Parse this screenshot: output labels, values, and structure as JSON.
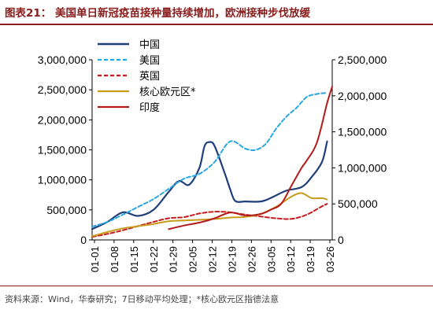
{
  "title": "图表21：  美国单日新冠疫苗接种量持续增加，欧洲接种步伐放缓",
  "source": "资料来源：Wind，华泰研究；7日移动平均处理；*核心欧元区指德法意",
  "colors": {
    "china": "#1f3f7a",
    "usa": "#2aa6e0",
    "uk": "#c41e1e",
    "eurozone": "#c89a1a",
    "india": "#b31b1b",
    "title": "#8a1c1c"
  },
  "chart_data": {
    "type": "line",
    "x": [
      "01-01",
      "01-08",
      "01-15",
      "01-22",
      "01-29",
      "02-05",
      "02-12",
      "02-19",
      "02-26",
      "03-05",
      "03-12",
      "03-19",
      "03-26"
    ],
    "left_axis": {
      "ylim": [
        0,
        3000000
      ],
      "ticks": [
        "0",
        "500,000",
        "1,000,000",
        "1,500,000",
        "2,000,000",
        "2,500,000",
        "3,000,000"
      ]
    },
    "right_axis": {
      "ylim": [
        0,
        2500000
      ],
      "ticks": [
        "0",
        "500,000",
        "1,000,000",
        "1,500,000",
        "2,000,000",
        "2,500,000"
      ]
    },
    "legend": "top-center",
    "series": [
      {
        "name": "中国",
        "axis": "left",
        "style": "solid",
        "points": [
          [
            0,
            180000
          ],
          [
            3,
            300000
          ],
          [
            6,
            460000
          ],
          [
            9,
            400000
          ],
          [
            12,
            500000
          ],
          [
            15,
            800000
          ],
          [
            17,
            980000
          ],
          [
            19,
            920000
          ],
          [
            21,
            1200000
          ],
          [
            22,
            1560000
          ],
          [
            23,
            1630000
          ],
          [
            24,
            1560000
          ],
          [
            26,
            1100000
          ],
          [
            27,
            850000
          ],
          [
            28,
            650000
          ],
          [
            30,
            640000
          ],
          [
            33,
            640000
          ],
          [
            35,
            700000
          ],
          [
            38,
            820000
          ],
          [
            41,
            880000
          ],
          [
            43,
            1050000
          ],
          [
            45,
            1300000
          ],
          [
            46,
            1640000
          ]
        ]
      },
      {
        "name": "美国",
        "axis": "left",
        "style": "dashed",
        "points": [
          [
            0,
            220000
          ],
          [
            3,
            300000
          ],
          [
            6,
            420000
          ],
          [
            9,
            550000
          ],
          [
            12,
            680000
          ],
          [
            15,
            850000
          ],
          [
            18,
            1020000
          ],
          [
            21,
            1100000
          ],
          [
            24,
            1300000
          ],
          [
            27,
            1640000
          ],
          [
            30,
            1520000
          ],
          [
            32,
            1500000
          ],
          [
            34,
            1600000
          ],
          [
            36,
            1850000
          ],
          [
            38,
            2050000
          ],
          [
            40,
            2200000
          ],
          [
            42,
            2380000
          ],
          [
            44,
            2430000
          ],
          [
            46,
            2450000
          ]
        ]
      },
      {
        "name": "英国",
        "axis": "left",
        "style": "dashed",
        "points": [
          [
            0,
            50000
          ],
          [
            3,
            100000
          ],
          [
            6,
            160000
          ],
          [
            9,
            230000
          ],
          [
            12,
            300000
          ],
          [
            15,
            360000
          ],
          [
            18,
            380000
          ],
          [
            21,
            440000
          ],
          [
            24,
            470000
          ],
          [
            27,
            460000
          ],
          [
            30,
            420000
          ],
          [
            33,
            390000
          ],
          [
            36,
            360000
          ],
          [
            39,
            350000
          ],
          [
            42,
            420000
          ],
          [
            45,
            560000
          ],
          [
            46,
            600000
          ]
        ]
      },
      {
        "name": "核心欧元区*",
        "axis": "right",
        "style": "solid",
        "points": [
          [
            0,
            50000
          ],
          [
            3,
            110000
          ],
          [
            6,
            160000
          ],
          [
            9,
            190000
          ],
          [
            12,
            220000
          ],
          [
            15,
            260000
          ],
          [
            18,
            270000
          ],
          [
            21,
            280000
          ],
          [
            24,
            290000
          ],
          [
            27,
            310000
          ],
          [
            30,
            320000
          ],
          [
            33,
            360000
          ],
          [
            36,
            460000
          ],
          [
            39,
            600000
          ],
          [
            41,
            650000
          ],
          [
            43,
            580000
          ],
          [
            45,
            580000
          ],
          [
            46,
            560000
          ]
        ]
      },
      {
        "name": "印度",
        "axis": "right",
        "style": "solid",
        "points": [
          [
            15,
            150000
          ],
          [
            18,
            200000
          ],
          [
            21,
            240000
          ],
          [
            24,
            300000
          ],
          [
            27,
            380000
          ],
          [
            30,
            340000
          ],
          [
            33,
            360000
          ],
          [
            35,
            420000
          ],
          [
            37,
            500000
          ],
          [
            39,
            750000
          ],
          [
            41,
            1000000
          ],
          [
            42,
            1100000
          ],
          [
            44,
            1350000
          ],
          [
            46,
            1900000
          ],
          [
            47,
            2130000
          ]
        ]
      }
    ]
  }
}
